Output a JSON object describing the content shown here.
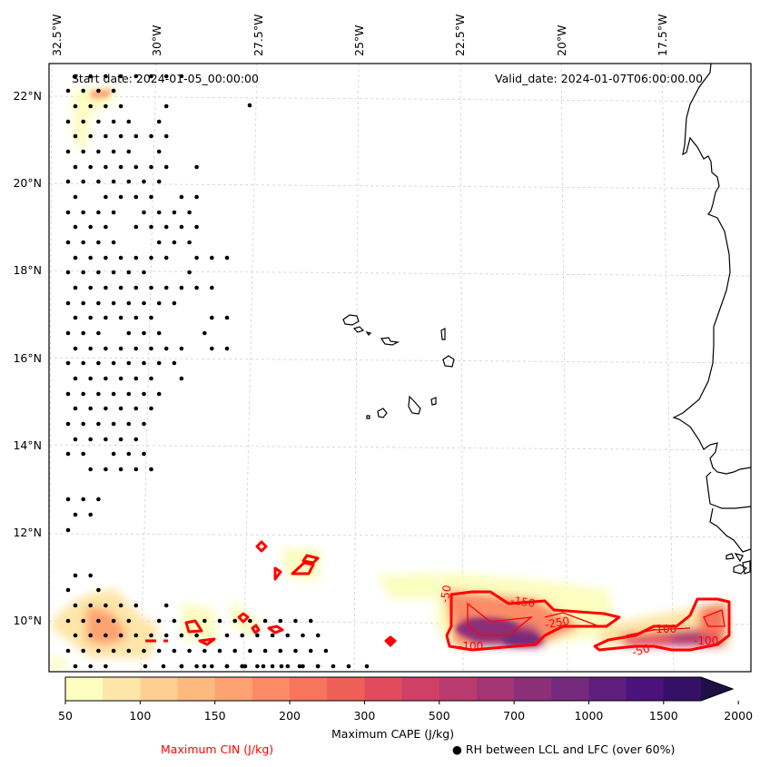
{
  "header": {
    "start_date": "Start date: 2024-01-05_00:00:00",
    "valid_date": "Valid_date: 2024-01-07T06:00:00.00"
  },
  "axes": {
    "lon_labels": [
      "32.5°W",
      "30°W",
      "27.5°W",
      "25°W",
      "22.5°W",
      "20°W",
      "17.5°W"
    ],
    "lat_labels": [
      "22°N",
      "20°N",
      "18°N",
      "16°N",
      "14°N",
      "12°N",
      "10°N"
    ]
  },
  "colorbar": {
    "label": "Maximum CAPE (J/kg)",
    "tick_labels": [
      "50",
      "100",
      "150",
      "200",
      "300",
      "500",
      "700",
      "1000",
      "1500",
      "2000"
    ],
    "colors": [
      "#fcfdbf",
      "#fde6a7",
      "#fecf92",
      "#feb97f",
      "#fda271",
      "#fb8c67",
      "#f6755c",
      "#ec6058",
      "#e14c5c",
      "#cf4066",
      "#b93b6e",
      "#a33574",
      "#8c2f79",
      "#762a7d",
      "#601e7e",
      "#4b127b",
      "#341067",
      "#1e0f46"
    ],
    "extend": "max"
  },
  "legend": {
    "cin_label": "Maximum CIN (J/kg)",
    "rh_label": "● RH between LCL and LFC (over 60%)",
    "cin_color": "#ff0000"
  },
  "contour_labels": [
    {
      "text": "-50"
    },
    {
      "text": "-150"
    },
    {
      "text": "-250"
    },
    {
      "text": "-100"
    },
    {
      "text": "-100"
    },
    {
      "text": "-50"
    },
    {
      "text": "-100"
    }
  ]
}
